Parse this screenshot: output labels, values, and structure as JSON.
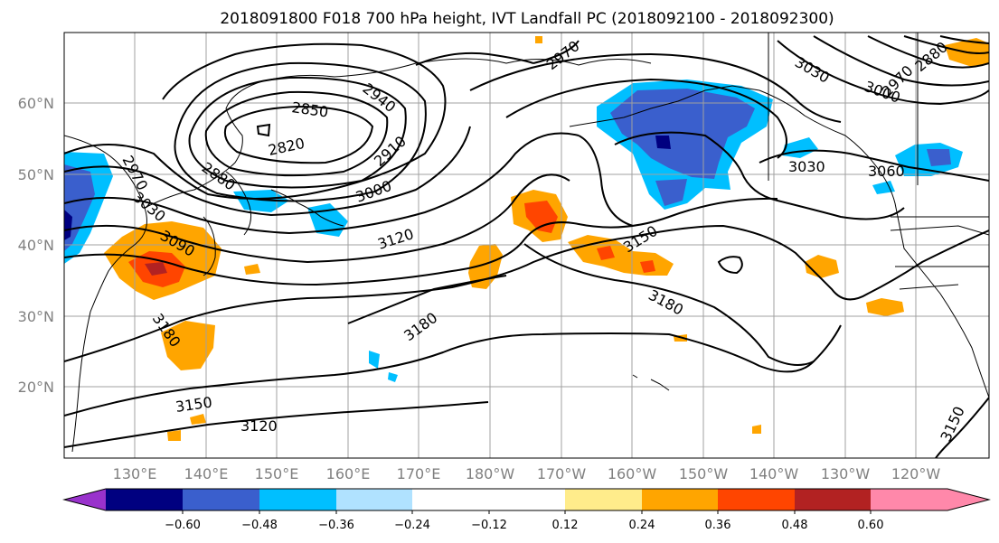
{
  "title": "2018091800 F018 700 hPa height, IVT Landfall PC (2018092100 - 2018092300)",
  "map": {
    "lat_labels": [
      "60°N",
      "50°N",
      "40°N",
      "30°N",
      "20°N"
    ],
    "lon_labels": [
      "130°E",
      "140°E",
      "150°E",
      "160°E",
      "170°E",
      "180°W",
      "170°W",
      "160°W",
      "150°W",
      "140°W",
      "130°W",
      "120°W"
    ],
    "contour_labels": [
      "2850",
      "2940",
      "2820",
      "2910",
      "2880",
      "2970",
      "3030",
      "3000",
      "3090",
      "3120",
      "3180",
      "3180",
      "3150",
      "3150",
      "3120",
      "3180",
      "3030",
      "3060",
      "3030",
      "3000",
      "2970",
      "2880",
      "2970",
      "3150"
    ],
    "gridlines": true
  },
  "colorbar": {
    "tick_labels": [
      "−0.60",
      "−0.48",
      "−0.36",
      "−0.24",
      "−0.12",
      "0.12",
      "0.24",
      "0.36",
      "0.48",
      "0.60"
    ],
    "colors": {
      "below_min": "#9932cc",
      "bins": [
        "#000080",
        "#3a5fcd",
        "#00bfff",
        "#b0e2ff",
        "#ffffff",
        "#ffec8b",
        "#ffa500",
        "#ff4500",
        "#b22222"
      ],
      "above_max": "#ff88aa"
    }
  }
}
